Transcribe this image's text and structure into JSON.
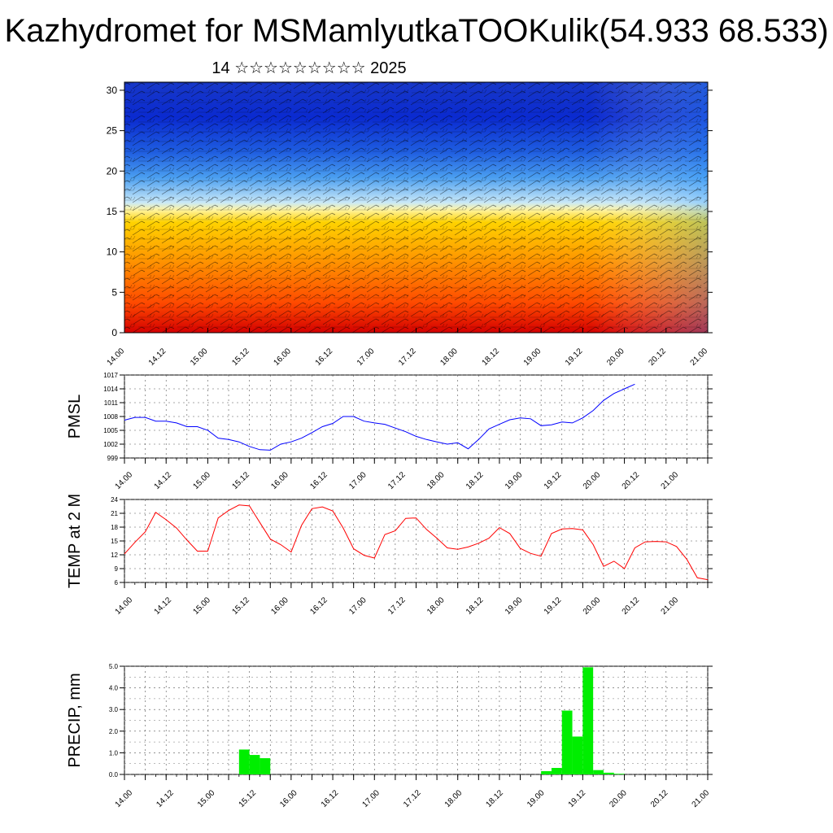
{
  "title": "Kazhydromet for MSMamlyutkaTOOKulik(54.933 68.533)",
  "subtitle": "14 ☆☆☆☆☆☆☆☆☆ 2025",
  "time_labels": [
    "14.00",
    "14.12",
    "15.00",
    "15.12",
    "16.00",
    "16.12",
    "17.00",
    "17.12",
    "18.00",
    "18.12",
    "19.00",
    "19.12",
    "20.00",
    "20.12",
    "21.00"
  ],
  "chart_data": [
    {
      "type": "heatmap",
      "title": "",
      "xlabel": "",
      "ylabel": "",
      "ylim": [
        0,
        31
      ],
      "yticks": [
        0,
        5,
        10,
        15,
        20,
        25,
        30
      ],
      "x": [
        "14.00",
        "14.12",
        "15.00",
        "15.12",
        "16.00",
        "16.12",
        "17.00",
        "17.12",
        "18.00",
        "18.12",
        "19.00",
        "19.12",
        "20.00",
        "20.12",
        "21.00"
      ],
      "description_colors": [
        "#d40000",
        "#ff6a00",
        "#ffd000",
        "#fff4a0",
        "#a8d8f0",
        "#2a7ae0",
        "#0018c8"
      ]
    },
    {
      "type": "line",
      "ylabel": "PMSL",
      "ylim": [
        999,
        1017
      ],
      "yticks": [
        999,
        1002,
        1005,
        1008,
        1011,
        1014,
        1017
      ],
      "x_start": 0,
      "x_step": 3,
      "color": "#0000ff",
      "values": [
        1007.2,
        1007.8,
        1007.8,
        1007.0,
        1007.0,
        1006.6,
        1005.8,
        1005.8,
        1005.0,
        1003.3,
        1003.0,
        1002.5,
        1001.5,
        1000.8,
        1000.7,
        1002.0,
        1002.5,
        1003.3,
        1004.5,
        1005.8,
        1006.5,
        1008.0,
        1008.0,
        1007.0,
        1006.6,
        1006.3,
        1005.5,
        1004.7,
        1003.7,
        1003.0,
        1002.5,
        1002.0,
        1002.3,
        1001.0,
        1003.0,
        1005.3,
        1006.3,
        1007.3,
        1007.7,
        1007.5,
        1006.0,
        1006.2,
        1006.8,
        1006.6,
        1007.7,
        1009.3,
        1011.5,
        1013.0,
        1014.0,
        1015.0
      ]
    },
    {
      "type": "line",
      "ylabel": "TEMP at 2 M",
      "ylim": [
        6,
        24
      ],
      "yticks": [
        6,
        9,
        12,
        15,
        18,
        21,
        24
      ],
      "x_start": 0,
      "x_step": 3,
      "color": "#ff0000",
      "values": [
        12.2,
        14.7,
        17.0,
        21.2,
        19.6,
        17.8,
        15.2,
        12.8,
        12.8,
        20.0,
        21.6,
        22.8,
        22.6,
        19.0,
        15.4,
        14.2,
        12.6,
        18.4,
        22.0,
        22.4,
        21.5,
        17.8,
        13.3,
        11.9,
        11.3,
        16.4,
        17.2,
        19.9,
        20.0,
        17.5,
        15.6,
        13.5,
        13.2,
        13.7,
        14.5,
        15.6,
        17.9,
        16.6,
        13.4,
        12.3,
        11.7,
        16.6,
        17.6,
        17.7,
        17.4,
        14.2,
        9.5,
        10.6,
        9.0,
        13.5,
        14.8,
        14.9,
        14.8,
        13.8,
        11.0,
        7.0,
        6.6
      ]
    },
    {
      "type": "bar",
      "ylabel": "PRECIP, mm",
      "ylim": [
        0,
        5
      ],
      "yticks": [
        "0.0",
        "1.0",
        "2.0",
        "3.0",
        "4.0",
        "5.0"
      ],
      "x_start": 0,
      "x_step": 3,
      "color": "#00ee00",
      "values": [
        0,
        0,
        0,
        0,
        0,
        0,
        0,
        0,
        0,
        0,
        0,
        1.15,
        0.9,
        0.75,
        0,
        0,
        0,
        0,
        0,
        0,
        0,
        0,
        0,
        0,
        0,
        0,
        0,
        0,
        0,
        0,
        0,
        0,
        0,
        0,
        0,
        0,
        0,
        0,
        0,
        0,
        0.15,
        0.3,
        2.95,
        1.75,
        4.95,
        0.2,
        0.08,
        0.03,
        0,
        0,
        0,
        0,
        0,
        0,
        0,
        0,
        0,
        0,
        0,
        0,
        0,
        0,
        0,
        0,
        0,
        0,
        0,
        0,
        0,
        0,
        0,
        0,
        0,
        0,
        0,
        0,
        0,
        0,
        0,
        0,
        0,
        0,
        0,
        0,
        0,
        0,
        0,
        0,
        0,
        0,
        0,
        0,
        0,
        0,
        0,
        0,
        0,
        0,
        0,
        0,
        0,
        0,
        0,
        0,
        0,
        0,
        0,
        0,
        0,
        0,
        0,
        0,
        0,
        0,
        0,
        0,
        0,
        0,
        0,
        0,
        0,
        0,
        0,
        0,
        0,
        0,
        0,
        0,
        0,
        0,
        0,
        0,
        0,
        0,
        0,
        0,
        0,
        0,
        0,
        0,
        0,
        0,
        0,
        0,
        0,
        0,
        0,
        0,
        0,
        0,
        0,
        0,
        0,
        0,
        0,
        0,
        0,
        0,
        0,
        0,
        0,
        0,
        0,
        0.15,
        0,
        0
      ]
    }
  ]
}
